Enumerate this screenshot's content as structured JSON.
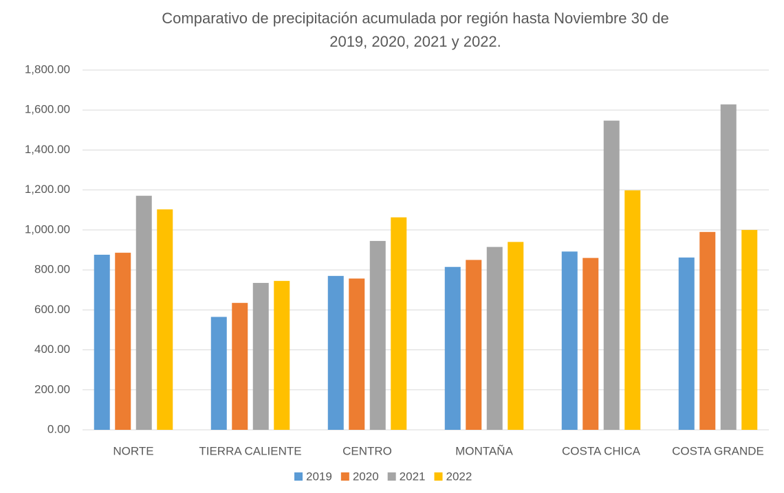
{
  "chart_data": {
    "type": "bar",
    "title": "Comparativo de precipitación acumulada por región hasta Noviembre 30 de 2019, 2020, 2021 y 2022.",
    "categories": [
      "NORTE",
      "TIERRA CALIENTE",
      "CENTRO",
      "MONTAÑA",
      "COSTA CHICA",
      "COSTA GRANDE"
    ],
    "series": [
      {
        "name": "2019",
        "color": "#5b9bd5",
        "values": [
          876,
          565,
          770,
          815,
          892,
          862
        ]
      },
      {
        "name": "2020",
        "color": "#ed7d31",
        "values": [
          886,
          635,
          757,
          850,
          860,
          990
        ]
      },
      {
        "name": "2021",
        "color": "#a5a5a5",
        "values": [
          1171,
          735,
          945,
          915,
          1547,
          1628
        ]
      },
      {
        "name": "2022",
        "color": "#ffc000",
        "values": [
          1103,
          745,
          1063,
          940,
          1198,
          1000
        ]
      }
    ],
    "ylim": [
      0,
      1800
    ],
    "yticks": [
      {
        "value": 0,
        "label": "0.00"
      },
      {
        "value": 200,
        "label": "200.00"
      },
      {
        "value": 400,
        "label": "400.00"
      },
      {
        "value": 600,
        "label": "600.00"
      },
      {
        "value": 800,
        "label": "800.00"
      },
      {
        "value": 1000,
        "label": "1,000.00"
      },
      {
        "value": 1200,
        "label": "1,200.00"
      },
      {
        "value": 1400,
        "label": "1,400.00"
      },
      {
        "value": 1600,
        "label": "1,600.00"
      },
      {
        "value": 1800,
        "label": "1,800.00"
      }
    ],
    "grid": true,
    "legend": "bottom"
  }
}
